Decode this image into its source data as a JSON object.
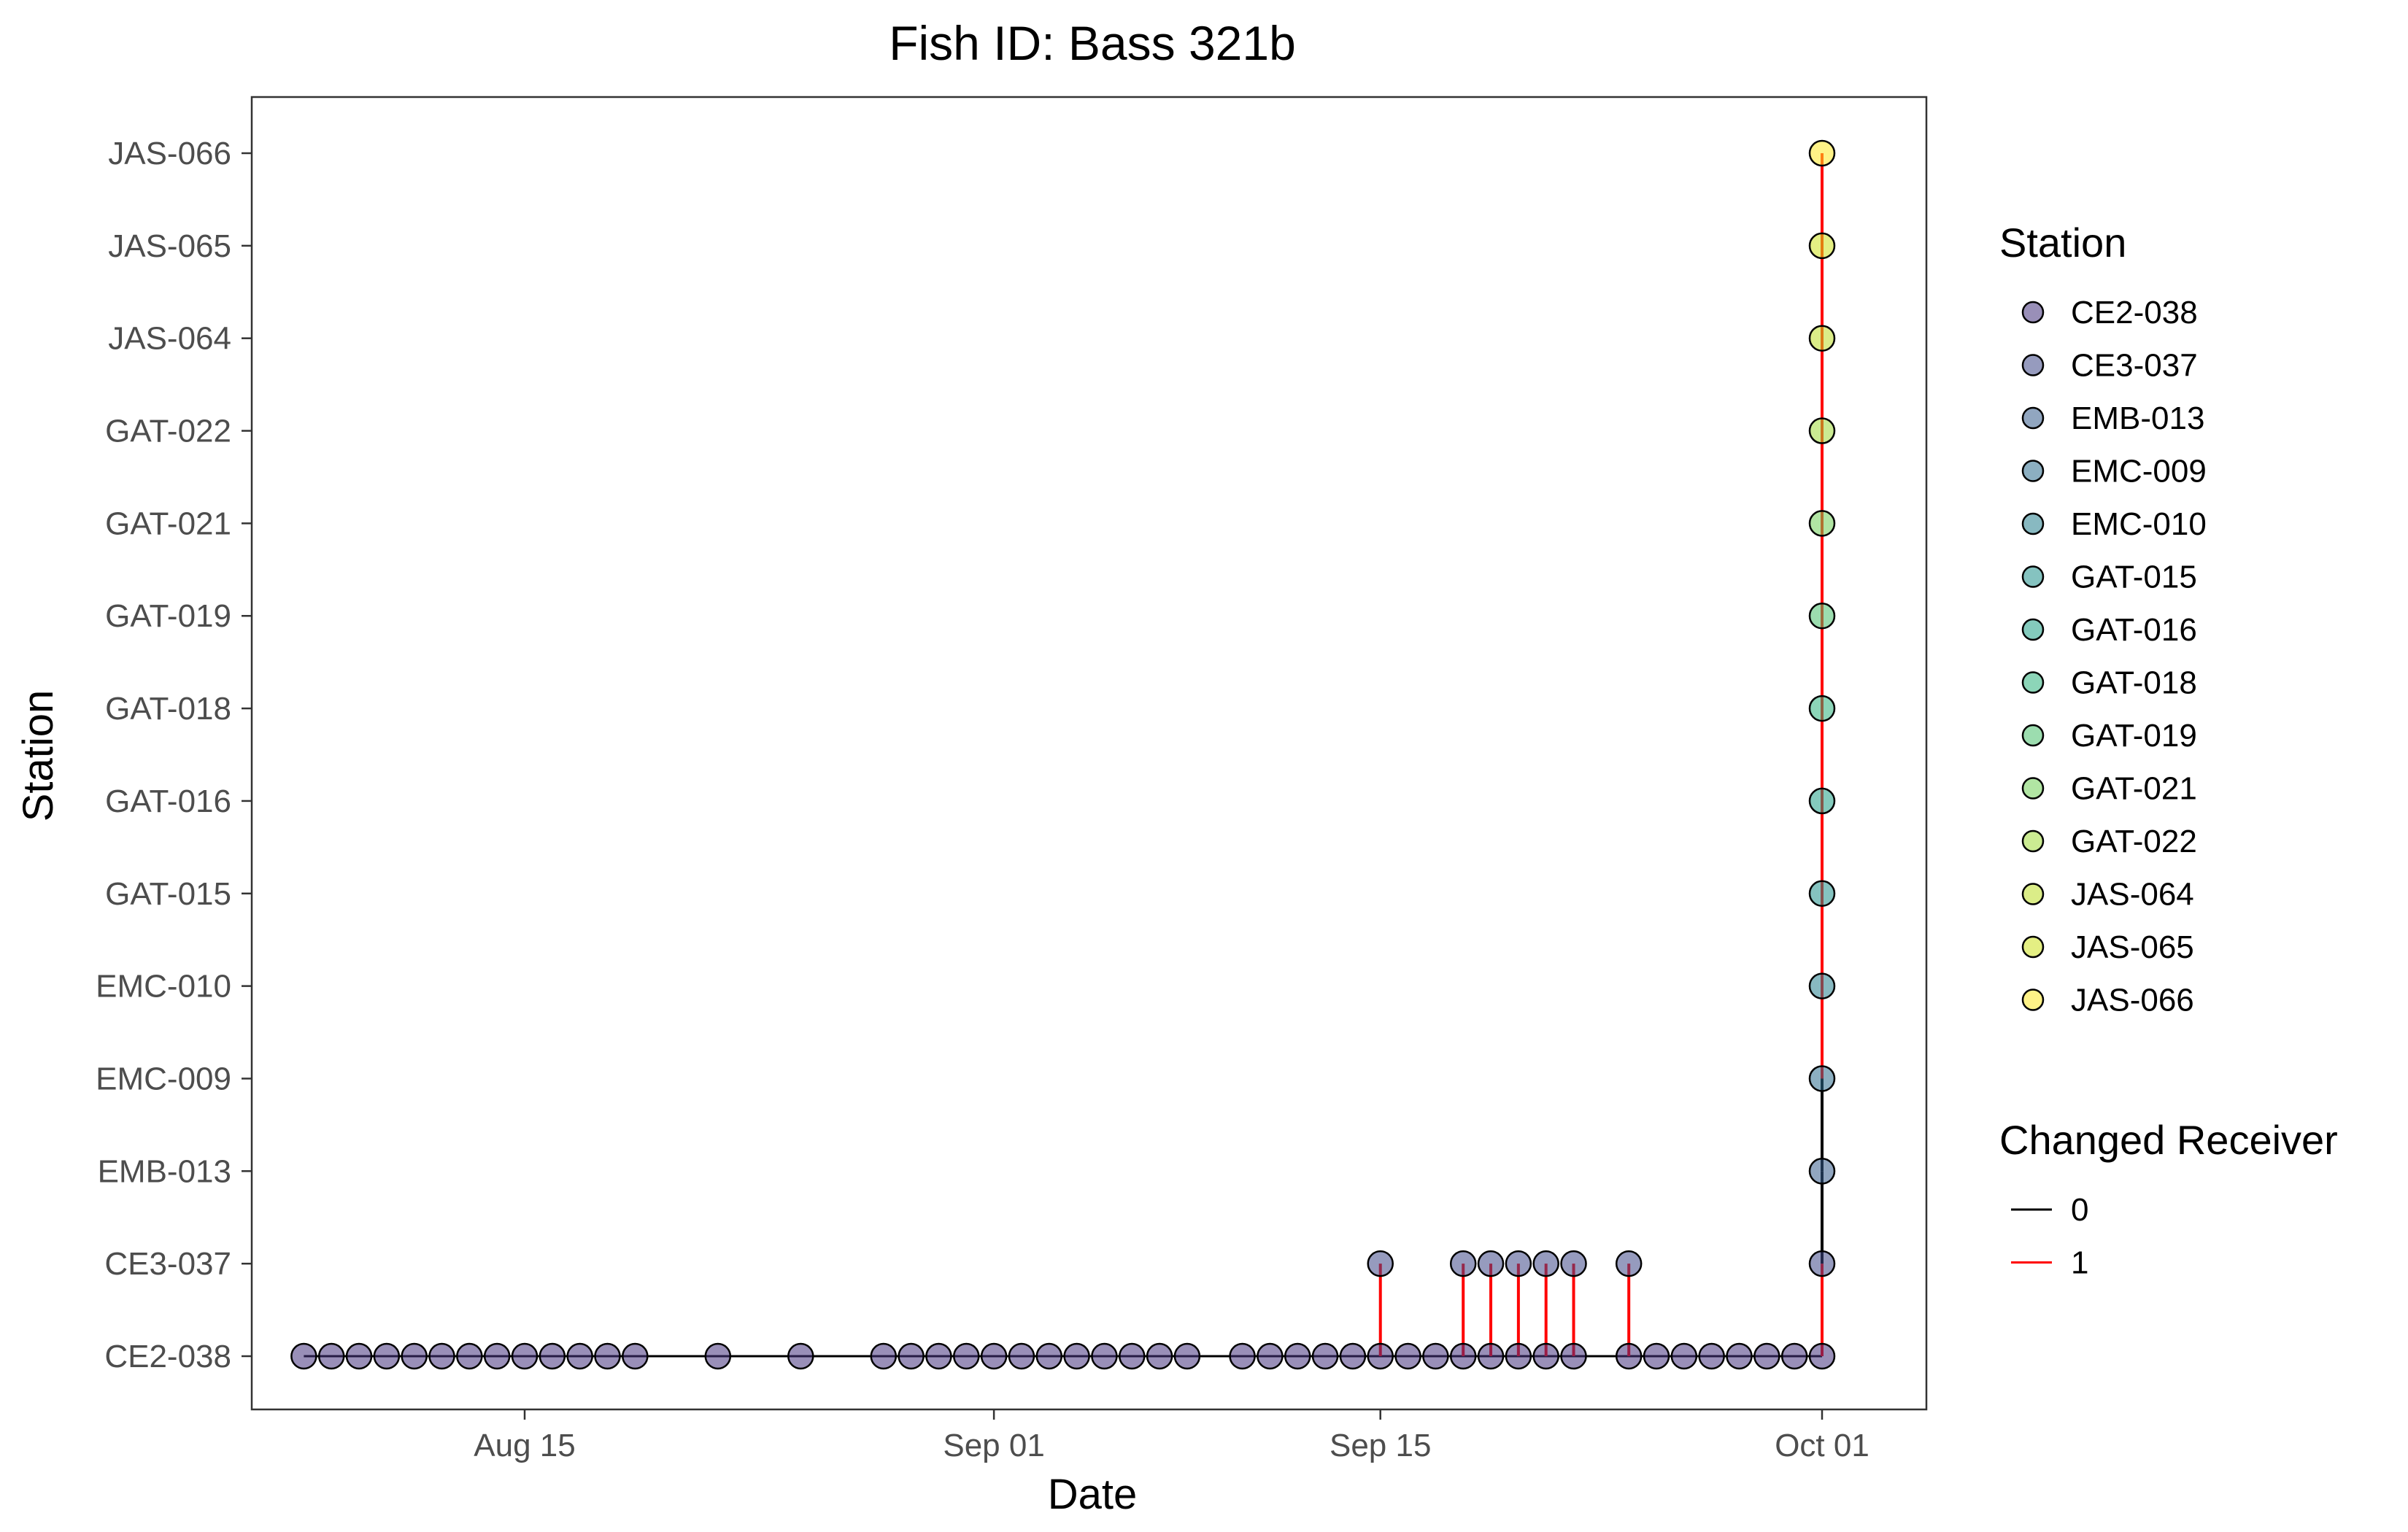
{
  "chart_data": {
    "type": "scatter",
    "title": "Fish ID: Bass 321b",
    "xlabel": "Date",
    "ylabel": "Station",
    "x_ticks": [
      {
        "date": "2023-08-15",
        "label": "Aug 15"
      },
      {
        "date": "2023-09-01",
        "label": "Sep 01"
      },
      {
        "date": "2023-09-15",
        "label": "Sep 15"
      },
      {
        "date": "2023-10-01",
        "label": "Oct 01"
      }
    ],
    "xlim": [
      "2023-08-05",
      "2023-10-05"
    ],
    "stations": [
      "CE2-038",
      "CE3-037",
      "EMB-013",
      "EMC-009",
      "EMC-010",
      "GAT-015",
      "GAT-016",
      "GAT-018",
      "GAT-019",
      "GAT-021",
      "GAT-022",
      "JAS-064",
      "JAS-065",
      "JAS-066"
    ],
    "station_colors": [
      "#46337e",
      "#3f4889",
      "#365c8d",
      "#2e6e8e",
      "#277f8e",
      "#21918c",
      "#1fa187",
      "#2db27d",
      "#4ac16d",
      "#71cf57",
      "#a0da39",
      "#bddf26",
      "#cde11d",
      "#fde725"
    ],
    "legend": {
      "station_title": "Station",
      "changed_title": "Changed Receiver",
      "changed_entries": [
        {
          "label": "0",
          "color": "#000000"
        },
        {
          "label": "1",
          "color": "#ff0000"
        }
      ]
    },
    "grid": false,
    "legend_position": "right",
    "detections": [
      {
        "date": "2023-08-07",
        "station": "CE2-038"
      },
      {
        "date": "2023-08-08",
        "station": "CE2-038"
      },
      {
        "date": "2023-08-09",
        "station": "CE2-038"
      },
      {
        "date": "2023-08-10",
        "station": "CE2-038"
      },
      {
        "date": "2023-08-11",
        "station": "CE2-038"
      },
      {
        "date": "2023-08-12",
        "station": "CE2-038"
      },
      {
        "date": "2023-08-13",
        "station": "CE2-038"
      },
      {
        "date": "2023-08-14",
        "station": "CE2-038"
      },
      {
        "date": "2023-08-15",
        "station": "CE2-038"
      },
      {
        "date": "2023-08-16",
        "station": "CE2-038"
      },
      {
        "date": "2023-08-17",
        "station": "CE2-038"
      },
      {
        "date": "2023-08-18",
        "station": "CE2-038"
      },
      {
        "date": "2023-08-19",
        "station": "CE2-038"
      },
      {
        "date": "2023-08-22",
        "station": "CE2-038"
      },
      {
        "date": "2023-08-25",
        "station": "CE2-038"
      },
      {
        "date": "2023-08-28",
        "station": "CE2-038"
      },
      {
        "date": "2023-08-29",
        "station": "CE2-038"
      },
      {
        "date": "2023-08-30",
        "station": "CE2-038"
      },
      {
        "date": "2023-08-31",
        "station": "CE2-038"
      },
      {
        "date": "2023-09-01",
        "station": "CE2-038"
      },
      {
        "date": "2023-09-02",
        "station": "CE2-038"
      },
      {
        "date": "2023-09-03",
        "station": "CE2-038"
      },
      {
        "date": "2023-09-04",
        "station": "CE2-038"
      },
      {
        "date": "2023-09-05",
        "station": "CE2-038"
      },
      {
        "date": "2023-09-06",
        "station": "CE2-038"
      },
      {
        "date": "2023-09-07",
        "station": "CE2-038"
      },
      {
        "date": "2023-09-08",
        "station": "CE2-038"
      },
      {
        "date": "2023-09-10",
        "station": "CE2-038"
      },
      {
        "date": "2023-09-11",
        "station": "CE2-038"
      },
      {
        "date": "2023-09-12",
        "station": "CE2-038"
      },
      {
        "date": "2023-09-13",
        "station": "CE2-038"
      },
      {
        "date": "2023-09-14",
        "station": "CE2-038"
      },
      {
        "date": "2023-09-15",
        "station": "CE3-037"
      },
      {
        "date": "2023-09-15",
        "station": "CE2-038"
      },
      {
        "date": "2023-09-16",
        "station": "CE2-038"
      },
      {
        "date": "2023-09-17",
        "station": "CE2-038"
      },
      {
        "date": "2023-09-18",
        "station": "CE3-037"
      },
      {
        "date": "2023-09-18",
        "station": "CE2-038"
      },
      {
        "date": "2023-09-19",
        "station": "CE3-037"
      },
      {
        "date": "2023-09-19",
        "station": "CE2-038"
      },
      {
        "date": "2023-09-20",
        "station": "CE3-037"
      },
      {
        "date": "2023-09-20",
        "station": "CE2-038"
      },
      {
        "date": "2023-09-21",
        "station": "CE3-037"
      },
      {
        "date": "2023-09-21",
        "station": "CE2-038"
      },
      {
        "date": "2023-09-22",
        "station": "CE3-037"
      },
      {
        "date": "2023-09-22",
        "station": "CE2-038"
      },
      {
        "date": "2023-09-24",
        "station": "CE3-037"
      },
      {
        "date": "2023-09-24",
        "station": "CE2-038"
      },
      {
        "date": "2023-09-25",
        "station": "CE2-038"
      },
      {
        "date": "2023-09-26",
        "station": "CE2-038"
      },
      {
        "date": "2023-09-27",
        "station": "CE2-038"
      },
      {
        "date": "2023-09-28",
        "station": "CE2-038"
      },
      {
        "date": "2023-09-29",
        "station": "CE2-038"
      },
      {
        "date": "2023-09-30",
        "station": "CE2-038"
      },
      {
        "date": "2023-10-01",
        "station": "CE2-038"
      },
      {
        "date": "2023-10-01",
        "station": "CE3-037"
      },
      {
        "date": "2023-10-01",
        "station": "EMB-013"
      },
      {
        "date": "2023-10-01",
        "station": "EMC-009"
      },
      {
        "date": "2023-10-01",
        "station": "EMC-010"
      },
      {
        "date": "2023-10-01",
        "station": "GAT-015"
      },
      {
        "date": "2023-10-01",
        "station": "GAT-016"
      },
      {
        "date": "2023-10-01",
        "station": "GAT-018"
      },
      {
        "date": "2023-10-01",
        "station": "GAT-019"
      },
      {
        "date": "2023-10-01",
        "station": "GAT-021"
      },
      {
        "date": "2023-10-01",
        "station": "GAT-022"
      },
      {
        "date": "2023-10-01",
        "station": "JAS-064"
      },
      {
        "date": "2023-10-01",
        "station": "JAS-065"
      },
      {
        "date": "2023-10-01",
        "station": "JAS-066"
      }
    ],
    "receiver_changes": [
      {
        "date": "2023-09-15",
        "from": "CE2-038",
        "to": "CE3-037",
        "changed": 1
      },
      {
        "date": "2023-09-18",
        "from": "CE2-038",
        "to": "CE3-037",
        "changed": 1
      },
      {
        "date": "2023-09-19",
        "from": "CE2-038",
        "to": "CE3-037",
        "changed": 1
      },
      {
        "date": "2023-09-20",
        "from": "CE2-038",
        "to": "CE3-037",
        "changed": 1
      },
      {
        "date": "2023-09-21",
        "from": "CE2-038",
        "to": "CE3-037",
        "changed": 1
      },
      {
        "date": "2023-09-22",
        "from": "CE2-038",
        "to": "CE3-037",
        "changed": 1
      },
      {
        "date": "2023-09-24",
        "from": "CE2-038",
        "to": "CE3-037",
        "changed": 1
      },
      {
        "date": "2023-10-01",
        "from": "CE2-038",
        "to": "CE3-037",
        "changed": 1
      },
      {
        "date": "2023-10-01",
        "from": "CE3-037",
        "to": "EMB-013",
        "changed": 0
      },
      {
        "date": "2023-10-01",
        "from": "EMB-013",
        "to": "EMC-009",
        "changed": 0
      },
      {
        "date": "2023-10-01",
        "from": "EMC-009",
        "to": "JAS-066",
        "changed": 1
      }
    ]
  }
}
